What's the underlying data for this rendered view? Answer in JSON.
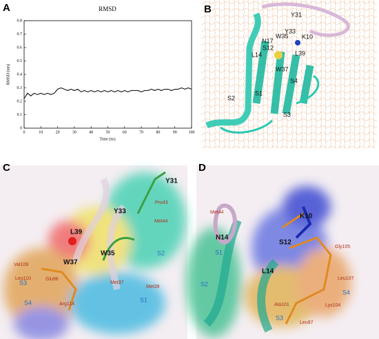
{
  "chart_data": {
    "type": "line",
    "panel": "A",
    "title": "RMSD",
    "xlabel": "Time (ns)",
    "ylabel": "RMSD (nm)",
    "x": [
      0,
      2,
      4,
      6,
      8,
      10,
      12,
      14,
      16,
      18,
      20,
      22,
      24,
      26,
      28,
      30,
      32,
      34,
      36,
      38,
      40,
      42,
      44,
      46,
      48,
      50,
      52,
      54,
      56,
      58,
      60,
      62,
      64,
      66,
      68,
      70,
      72,
      74,
      76,
      78,
      80,
      82,
      84,
      86,
      88,
      90,
      92,
      94,
      96,
      98,
      100
    ],
    "series": [
      {
        "name": "RMSD",
        "color": "#000000",
        "values": [
          0.22,
          0.26,
          0.24,
          0.26,
          0.25,
          0.26,
          0.25,
          0.26,
          0.25,
          0.26,
          0.29,
          0.3,
          0.29,
          0.28,
          0.29,
          0.28,
          0.29,
          0.27,
          0.28,
          0.27,
          0.28,
          0.27,
          0.28,
          0.27,
          0.28,
          0.27,
          0.28,
          0.27,
          0.28,
          0.27,
          0.28,
          0.27,
          0.28,
          0.28,
          0.28,
          0.27,
          0.28,
          0.28,
          0.29,
          0.28,
          0.29,
          0.28,
          0.29,
          0.29,
          0.28,
          0.29,
          0.29,
          0.3,
          0.29,
          0.3,
          0.29
        ]
      }
    ],
    "xlim": [
      0,
      100
    ],
    "xticks": [
      0,
      10,
      20,
      30,
      40,
      50,
      60,
      70,
      80,
      90,
      100
    ],
    "ylim": [
      0,
      0.8
    ],
    "yticks": [
      0,
      0.1,
      0.2,
      0.3,
      0.4,
      0.5,
      0.6,
      0.7,
      0.8
    ]
  },
  "panels": [
    {
      "letter": "B",
      "labels": [
        "Y31",
        "Y33",
        "W35",
        "K10",
        "N17",
        "S12",
        "L14",
        "L39",
        "W37",
        "S2",
        "S1",
        "S4",
        "S3"
      ]
    },
    {
      "letter": "C",
      "labels": [
        "Y31",
        "Pro43",
        "Y33",
        "Met44",
        "L39",
        "W35",
        "S2",
        "W37",
        "Val109",
        "Met37",
        "Met39",
        "Leu110",
        "Glu98",
        "S3",
        "S1",
        "S4",
        "Arg114"
      ]
    },
    {
      "letter": "D",
      "labels": [
        "Met44",
        "K10",
        "N14",
        "S12",
        "Gly105",
        "S1",
        "L14",
        "Leu107",
        "S2",
        "S4",
        "Ala101",
        "Lys104",
        "S3",
        "Leu97"
      ]
    }
  ]
}
